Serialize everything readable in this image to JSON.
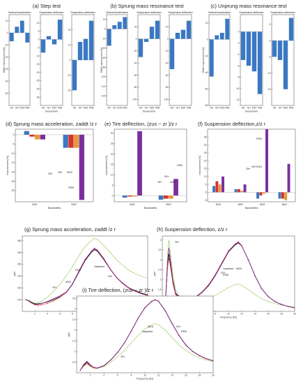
{
  "colors": {
    "blue": "#3b78c3",
    "red": "#d7322b",
    "orange": "#e39a3a",
    "purple": "#7a2f9e",
    "green": "#8fc54a",
    "black": "#111111",
    "pink": "#e05a7a"
  },
  "chart_data": [
    {
      "id": "a",
      "type": "bar",
      "title": "(a) Step test",
      "ylabel": "RMS improvement [%]",
      "subplots": [
        {
          "title": "Vertical Acceleration",
          "categories": [
            "SH",
            "GH",
            "M15",
            "FEB"
          ],
          "values": [
            -7,
            5,
            10,
            -8
          ],
          "ylim": [
            -60,
            15
          ],
          "ticks": [
            10,
            0,
            -10,
            -20,
            -30,
            -40,
            -50
          ]
        },
        {
          "title": "Suspension deflection",
          "categories": [
            "SH",
            "GH",
            "M15",
            "FEB"
          ],
          "values": [
            -8,
            2,
            -3,
            12
          ],
          "ylim": [
            -40,
            15
          ],
          "ticks": [
            10,
            5,
            0,
            -5,
            -10,
            -15,
            -20,
            -25,
            -30,
            -35
          ]
        },
        {
          "title": "Suspension deflection",
          "categories": [
            "SH",
            "GH",
            "M15",
            "FEB"
          ],
          "values": [
            -20,
            12,
            14,
            26
          ],
          "ylim": [
            -30,
            30
          ],
          "ticks": [
            20,
            10,
            0,
            -10,
            -20
          ],
          "xlabel": "Suspension"
        }
      ]
    },
    {
      "id": "b",
      "type": "bar",
      "title": "(b) Sprung mass resonance test",
      "ylabel": "RMS improvement [%]",
      "subplots": [
        {
          "title": "Vertical Acceleration",
          "categories": [
            "SH",
            "GH",
            "M15",
            "FEB"
          ],
          "values": [
            -35,
            8,
            15,
            25
          ],
          "ylim": [
            -160,
            30
          ],
          "ticks": [
            20,
            0,
            -20,
            -40,
            -60,
            -80,
            -100,
            -120,
            -140
          ]
        },
        {
          "title": "Suspension deflection",
          "categories": [
            "SH",
            "GH",
            "M15",
            "FEB"
          ],
          "values": [
            -30,
            -5,
            20,
            30
          ],
          "ylim": [
            -110,
            40
          ],
          "ticks": [
            20,
            0,
            -20,
            -40,
            -60,
            -80,
            -100
          ]
        },
        {
          "title": "Suspension deflection",
          "categories": [
            "SH",
            "GH",
            "M15",
            "FEB"
          ],
          "values": [
            -50,
            10,
            15,
            30
          ],
          "ylim": [
            -110,
            40
          ],
          "ticks": [
            20,
            0,
            -20,
            -40,
            -60,
            -80,
            -100
          ],
          "xlabel": "Suspension"
        }
      ]
    },
    {
      "id": "c",
      "type": "bar",
      "title": "(c) Unprung mass resonance test",
      "ylabel": "RMS improvement [%]",
      "subplots": [
        {
          "title": "Vertical Acceleration",
          "categories": [
            "SH",
            "GH",
            "M15",
            "FEB"
          ],
          "values": [
            -45,
            5,
            8,
            25
          ],
          "ylim": [
            -80,
            30
          ],
          "ticks": [
            20,
            0,
            -20,
            -40,
            -60,
            -80
          ]
        },
        {
          "title": "Suspension deflection",
          "categories": [
            "SH",
            "GH",
            "M15",
            "FEB"
          ],
          "values": [
            -5,
            -6,
            -7,
            -11
          ],
          "ylim": [
            -13,
            3
          ],
          "ticks": [
            0,
            -2,
            -4,
            -6,
            -8,
            -10,
            -12
          ]
        },
        {
          "title": "Suspension deflection",
          "categories": [
            "SH",
            "GH",
            "M15",
            "FEB"
          ],
          "values": [
            -5,
            -6,
            -15,
            7
          ],
          "ylim": [
            -20,
            8
          ],
          "ticks": [
            5,
            0,
            -5,
            -10,
            -15
          ],
          "xlabel": "Suspension"
        }
      ]
    },
    {
      "id": "d",
      "type": "bar",
      "title": "(d) Sprung mass acceleration, zaddt /z r",
      "ylabel": "Improvement [%]",
      "xlabel": "Bandwidths",
      "categories": [
        "BW1",
        "BW2"
      ],
      "series": [
        {
          "name": "SH",
          "values": [
            2,
            -7
          ]
        },
        {
          "name": "GH",
          "values": [
            -1,
            -7
          ]
        },
        {
          "name": "M15",
          "values": [
            -2.5,
            -7
          ]
        },
        {
          "name": "FEB",
          "values": [
            -2.5,
            -35
          ]
        }
      ],
      "ylim": [
        -36,
        3
      ],
      "ticks": [
        0,
        -5,
        -10,
        -15,
        -20,
        -25,
        -30
      ],
      "annotations": [
        "SH",
        "GH",
        "M15",
        "FEB"
      ]
    },
    {
      "id": "e",
      "type": "bar",
      "title": "(e) Tire deflection, (zus − zr )/z r",
      "ylabel": "Improvement [%]",
      "xlabel": "Bandwidths",
      "categories": [
        "BW3",
        "BW4"
      ],
      "series": [
        {
          "name": "SH",
          "values": [
            -1,
            -2
          ]
        },
        {
          "name": "GH",
          "values": [
            -0.5,
            -1.5
          ]
        },
        {
          "name": "M15",
          "values": [
            -0.5,
            -1.5
          ]
        },
        {
          "name": "FEB",
          "values": [
            31,
            8
          ]
        }
      ],
      "ylim": [
        -3,
        32
      ],
      "ticks": [
        30,
        25,
        20,
        15,
        10,
        5,
        0
      ],
      "annotations": [
        "SH",
        "GH",
        "M15",
        "FEB"
      ]
    },
    {
      "id": "f",
      "type": "bar",
      "title": "(f) Suspension deflection,z/z r",
      "ylabel": "Improvement [%]",
      "xlabel": "Bandwidths",
      "categories": [
        "BW1",
        "BW2",
        "BW3",
        "BW4"
      ],
      "series": [
        {
          "name": "SH",
          "values": [
            4,
            2,
            -4,
            -4
          ]
        },
        {
          "name": "GH",
          "values": [
            7,
            2,
            -2,
            -4
          ]
        },
        {
          "name": "M15",
          "values": [
            5,
            1,
            -1,
            -5
          ]
        },
        {
          "name": "FEB",
          "values": [
            10,
            5,
            40,
            18
          ]
        }
      ],
      "ylim": [
        -6,
        40
      ],
      "ticks": [
        35,
        30,
        25,
        20,
        15,
        10,
        5,
        0,
        -5
      ],
      "annotations": [
        "FEB",
        "SH",
        "GH",
        "M15"
      ]
    },
    {
      "id": "g",
      "type": "line",
      "title": "(g) Sprung mass acceleration, zaddt /z r",
      "xlabel": "Frequency [Hz]",
      "ylabel": "gain",
      "xlim": [
        0,
        20
      ],
      "ylim": [
        50,
        370
      ],
      "xticks": [
        2,
        4,
        6,
        8,
        10,
        12,
        14,
        16,
        18,
        20
      ],
      "yticks": [
        100,
        150,
        200,
        250,
        300,
        350
      ],
      "x": [
        0.5,
        1,
        1.5,
        2,
        2.5,
        3,
        4,
        5,
        6,
        7,
        8,
        9,
        10,
        11,
        11.5,
        12,
        13,
        14,
        15,
        16,
        17,
        18,
        19,
        20
      ],
      "series": [
        {
          "name": "baseline",
          "values": [
            100,
            98,
            90,
            85,
            86,
            92,
            110,
            135,
            165,
            200,
            240,
            285,
            325,
            350,
            360,
            355,
            330,
            300,
            270,
            245,
            225,
            210,
            200,
            190
          ]
        },
        {
          "name": "GH",
          "values": [
            100,
            96,
            88,
            82,
            82,
            84,
            90,
            100,
            112,
            130,
            165,
            215,
            265,
            300,
            312,
            305,
            270,
            230,
            195,
            170,
            150,
            138,
            128,
            120
          ]
        },
        {
          "name": "M15",
          "values": [
            100,
            95,
            86,
            78,
            76,
            78,
            84,
            95,
            110,
            130,
            168,
            220,
            270,
            305,
            318,
            310,
            275,
            232,
            196,
            170,
            150,
            136,
            126,
            118
          ]
        },
        {
          "name": "FEB",
          "values": [
            100,
            95,
            86,
            78,
            76,
            78,
            84,
            95,
            110,
            130,
            168,
            220,
            270,
            305,
            318,
            310,
            275,
            232,
            196,
            170,
            150,
            136,
            126,
            118
          ]
        },
        {
          "name": "SH",
          "values": [
            100,
            94,
            85,
            80,
            80,
            83,
            92,
            104,
            116,
            132,
            166,
            218,
            268,
            304,
            316,
            308,
            272,
            230,
            194,
            168,
            148,
            135,
            125,
            117
          ]
        }
      ],
      "annotations": [
        "FEB",
        "baseline",
        "GH",
        "M15",
        "SH"
      ]
    },
    {
      "id": "h",
      "type": "line",
      "title": "(h) Suspension deflection, z/z r",
      "xlabel": "Frequency [Hz]",
      "ylabel": "gain",
      "xlim": [
        0,
        20
      ],
      "ylim": [
        0.4,
        4.2
      ],
      "xticks": [
        2,
        4,
        6,
        8,
        10,
        12,
        14,
        16,
        18,
        20
      ],
      "yticks": [
        0.5,
        1,
        1.5,
        2,
        2.5,
        3,
        3.5,
        4
      ],
      "x": [
        0.5,
        0.8,
        1,
        1.3,
        1.6,
        2,
        3,
        4,
        5,
        6,
        7,
        8,
        9,
        10,
        11,
        11.5,
        12,
        13,
        14,
        15,
        16,
        17,
        18,
        19,
        20
      ],
      "series": [
        {
          "name": "baseline",
          "values": [
            1.0,
            3.3,
            4.0,
            3.2,
            2.3,
            1.5,
            1.0,
            0.95,
            0.95,
            1.0,
            1.08,
            1.2,
            1.4,
            1.6,
            1.75,
            1.78,
            1.72,
            1.5,
            1.25,
            1.05,
            0.9,
            0.8,
            0.72,
            0.67,
            0.62
          ]
        },
        {
          "name": "GH",
          "values": [
            1.0,
            2.8,
            3.3,
            2.6,
            1.9,
            1.3,
            0.95,
            0.98,
            1.1,
            1.35,
            1.7,
            2.2,
            2.8,
            3.4,
            3.75,
            3.85,
            3.7,
            3.0,
            2.2,
            1.55,
            1.15,
            0.9,
            0.75,
            0.65,
            0.58
          ]
        },
        {
          "name": "M15",
          "values": [
            1.0,
            2.6,
            3.1,
            2.5,
            1.8,
            1.25,
            0.95,
            1.0,
            1.12,
            1.38,
            1.75,
            2.25,
            2.85,
            3.45,
            3.8,
            3.9,
            3.72,
            3.0,
            2.2,
            1.55,
            1.15,
            0.9,
            0.75,
            0.65,
            0.58
          ]
        },
        {
          "name": "FEB",
          "values": [
            1.0,
            2.6,
            3.1,
            2.5,
            1.8,
            1.25,
            0.95,
            1.0,
            1.12,
            1.38,
            1.75,
            2.25,
            2.85,
            3.45,
            3.8,
            3.9,
            3.72,
            3.0,
            2.2,
            1.55,
            1.15,
            0.9,
            0.75,
            0.65,
            0.58
          ]
        },
        {
          "name": "SH",
          "values": [
            1.0,
            2.9,
            3.6,
            2.8,
            2.0,
            1.35,
            0.97,
            1.0,
            1.12,
            1.36,
            1.72,
            2.22,
            2.82,
            3.42,
            3.78,
            3.88,
            3.71,
            3.0,
            2.2,
            1.55,
            1.15,
            0.9,
            0.75,
            0.65,
            0.58
          ]
        }
      ],
      "annotations": [
        "SH",
        "baseline",
        "FEB",
        "M15",
        "GH"
      ]
    },
    {
      "id": "i",
      "type": "line",
      "title": "(i) Tire deflection, (zus − zr )/z r",
      "xlabel": "Frequency [Hz]",
      "ylabel": "gain",
      "xlim": [
        0,
        20
      ],
      "ylim": [
        0,
        3.6
      ],
      "xticks": [
        2,
        4,
        6,
        8,
        10,
        12,
        14,
        16,
        18,
        20
      ],
      "yticks": [
        0.5,
        1,
        1.5,
        2,
        2.5,
        3,
        3.5
      ],
      "x": [
        0.5,
        1,
        1.5,
        2,
        2.5,
        3,
        4,
        5,
        6,
        7,
        8,
        9,
        10,
        11,
        11.5,
        12,
        13,
        14,
        15,
        16,
        17,
        18,
        19,
        20
      ],
      "series": [
        {
          "name": "baseline",
          "values": [
            0.1,
            0.3,
            0.4,
            0.3,
            0.22,
            0.2,
            0.3,
            0.5,
            0.75,
            1.05,
            1.4,
            1.75,
            2.05,
            2.25,
            2.3,
            2.25,
            2.0,
            1.65,
            1.3,
            1.05,
            0.85,
            0.7,
            0.6,
            0.52
          ]
        },
        {
          "name": "GH",
          "values": [
            0.1,
            0.35,
            0.5,
            0.35,
            0.25,
            0.22,
            0.33,
            0.6,
            0.95,
            1.4,
            1.95,
            2.55,
            3.05,
            3.35,
            3.42,
            3.35,
            2.9,
            2.3,
            1.75,
            1.3,
            1.0,
            0.8,
            0.66,
            0.56
          ]
        },
        {
          "name": "M15",
          "values": [
            0.1,
            0.32,
            0.45,
            0.33,
            0.24,
            0.22,
            0.33,
            0.6,
            0.95,
            1.4,
            1.95,
            2.55,
            3.05,
            3.35,
            3.42,
            3.35,
            2.9,
            2.3,
            1.75,
            1.3,
            1.0,
            0.8,
            0.66,
            0.56
          ]
        },
        {
          "name": "FEB",
          "values": [
            0.1,
            0.32,
            0.45,
            0.33,
            0.24,
            0.22,
            0.33,
            0.6,
            0.95,
            1.4,
            1.95,
            2.55,
            3.05,
            3.35,
            3.42,
            3.35,
            2.9,
            2.3,
            1.75,
            1.3,
            1.0,
            0.8,
            0.66,
            0.56
          ]
        },
        {
          "name": "SH",
          "values": [
            0.1,
            0.38,
            0.55,
            0.38,
            0.26,
            0.23,
            0.34,
            0.61,
            0.96,
            1.41,
            1.96,
            2.56,
            3.06,
            3.36,
            3.43,
            3.36,
            2.91,
            2.31,
            1.76,
            1.31,
            1.01,
            0.81,
            0.67,
            0.57
          ]
        }
      ],
      "annotations": [
        "SH",
        "M15",
        "baseline",
        "GH",
        "FEB"
      ]
    }
  ]
}
